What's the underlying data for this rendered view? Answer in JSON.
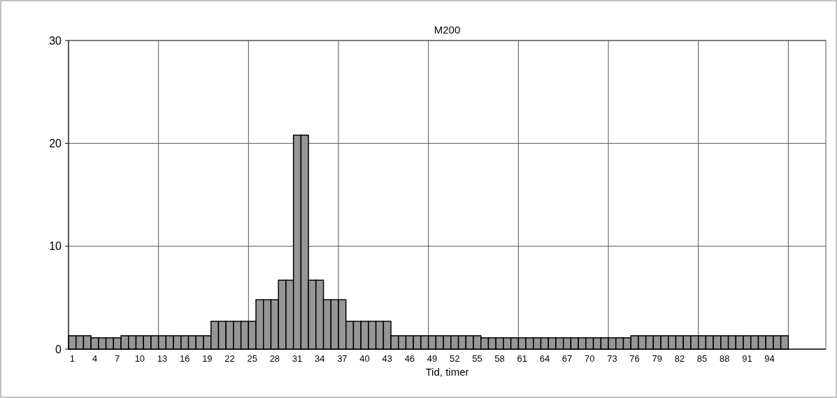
{
  "chart_data": {
    "type": "bar",
    "title": "M200",
    "xlabel": "Tid, timer",
    "categories": [
      "1",
      null,
      null,
      "4",
      null,
      null,
      "7",
      null,
      null,
      "10",
      null,
      null,
      "13",
      null,
      null,
      "16",
      null,
      null,
      "19",
      null,
      null,
      "22",
      null,
      null,
      "25",
      null,
      null,
      "28",
      null,
      null,
      "31",
      null,
      null,
      "34",
      null,
      null,
      "37",
      null,
      null,
      "40",
      null,
      null,
      "43",
      null,
      null,
      "46",
      null,
      null,
      "49",
      null,
      null,
      "52",
      null,
      null,
      "55",
      null,
      null,
      "58",
      null,
      null,
      "61",
      null,
      null,
      "64",
      null,
      null,
      "67",
      null,
      null,
      "70",
      null,
      null,
      "73",
      null,
      null,
      "76",
      null,
      null,
      "79",
      null,
      null,
      "82",
      null,
      null,
      "85",
      null,
      null,
      "88",
      null,
      null,
      "91",
      null,
      null,
      "94",
      null,
      null,
      null,
      null,
      null,
      null,
      null
    ],
    "values": [
      1.3,
      1.3,
      1.3,
      1.1,
      1.1,
      1.1,
      1.1,
      1.3,
      1.3,
      1.3,
      1.3,
      1.3,
      1.3,
      1.3,
      1.3,
      1.3,
      1.3,
      1.3,
      1.3,
      2.7,
      2.7,
      2.7,
      2.7,
      2.7,
      2.7,
      4.8,
      4.8,
      4.8,
      6.7,
      6.7,
      20.8,
      20.8,
      6.7,
      6.7,
      4.8,
      4.8,
      4.8,
      2.7,
      2.7,
      2.7,
      2.7,
      2.7,
      2.7,
      1.3,
      1.3,
      1.3,
      1.3,
      1.3,
      1.3,
      1.3,
      1.3,
      1.3,
      1.3,
      1.3,
      1.3,
      1.1,
      1.1,
      1.1,
      1.1,
      1.1,
      1.1,
      1.1,
      1.1,
      1.1,
      1.1,
      1.1,
      1.1,
      1.1,
      1.1,
      1.1,
      1.1,
      1.1,
      1.1,
      1.1,
      1.1,
      1.3,
      1.3,
      1.3,
      1.3,
      1.3,
      1.3,
      1.3,
      1.3,
      1.3,
      1.3,
      1.3,
      1.3,
      1.3,
      1.3,
      1.3,
      1.3,
      1.3,
      1.3,
      1.3,
      1.3,
      1.3,
      null,
      null,
      null,
      null,
      null
    ],
    "color": "#969696",
    "ylim": [
      0,
      30
    ],
    "yticks": [
      0,
      10,
      20,
      30
    ],
    "grid": true
  }
}
